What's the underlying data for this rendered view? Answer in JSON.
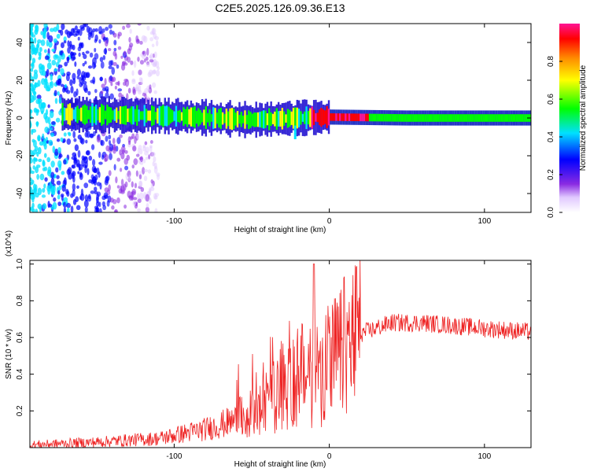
{
  "title": "C2E5.2025.126.09.36.E13",
  "chart_data": [
    {
      "type": "heatmap",
      "xlabel": "Height of straight line (km)",
      "ylabel": "Frequency (Hz)",
      "xlim": [
        -193,
        130
      ],
      "ylim": [
        -50,
        50
      ],
      "xticks": [
        -100,
        0,
        100
      ],
      "xtick_labels": [
        "-100",
        "0",
        "100"
      ],
      "yticks": [
        -40,
        -20,
        0,
        20,
        40
      ],
      "ytick_labels": [
        "-40",
        "-20",
        "0",
        "20",
        "40"
      ],
      "colorbar": {
        "label": "Normalized spectral amplitude",
        "range": [
          0,
          1
        ],
        "ticks": [
          0,
          0.2,
          0.4,
          0.6,
          0.8
        ],
        "tick_labels": [
          "0.0",
          "0.2",
          "0.4",
          "0.6",
          "0.8"
        ]
      },
      "band": {
        "center_freq": [
          {
            "x": -170,
            "y": 2
          },
          {
            "x": -100,
            "y": 1
          },
          {
            "x": -50,
            "y": -1
          },
          {
            "x": -20,
            "y": 0
          },
          {
            "x": 0,
            "y": 0.5
          },
          {
            "x": 50,
            "y": 0
          },
          {
            "x": 130,
            "y": 0
          }
        ],
        "peak_x_range": [
          -12,
          25
        ],
        "scattered_noise_x_range": [
          -193,
          -110
        ]
      },
      "grid": false
    },
    {
      "type": "line",
      "xlabel": "Height of straight line (km)",
      "ylabel": "SNR (10 * v/v)",
      "y_multiplier": "(x10^4)",
      "xlim": [
        -193,
        130
      ],
      "ylim": [
        0,
        1.02
      ],
      "xticks": [
        -100,
        0,
        100
      ],
      "xtick_labels": [
        "-100",
        "0",
        "100"
      ],
      "yticks": [
        0.2,
        0.4,
        0.6,
        0.8,
        1.0
      ],
      "ytick_labels": [
        "0.2",
        "0.4",
        "0.6",
        "0.8",
        "1.0"
      ],
      "color": "#ee2222",
      "envelope": [
        {
          "x": -193,
          "y": 0.015
        },
        {
          "x": -150,
          "y": 0.03
        },
        {
          "x": -110,
          "y": 0.05
        },
        {
          "x": -80,
          "y": 0.1
        },
        {
          "x": -60,
          "y": 0.15
        },
        {
          "x": -45,
          "y": 0.2
        },
        {
          "x": -35,
          "y": 0.3
        },
        {
          "x": -25,
          "y": 0.35
        },
        {
          "x": -15,
          "y": 0.4
        },
        {
          "x": 0,
          "y": 0.45
        },
        {
          "x": 10,
          "y": 0.55
        },
        {
          "x": 20,
          "y": 0.62
        },
        {
          "x": 40,
          "y": 0.68
        },
        {
          "x": 60,
          "y": 0.68
        },
        {
          "x": 100,
          "y": 0.65
        },
        {
          "x": 130,
          "y": 0.63
        }
      ],
      "peak": {
        "x": -10,
        "y": 1.0
      }
    }
  ]
}
